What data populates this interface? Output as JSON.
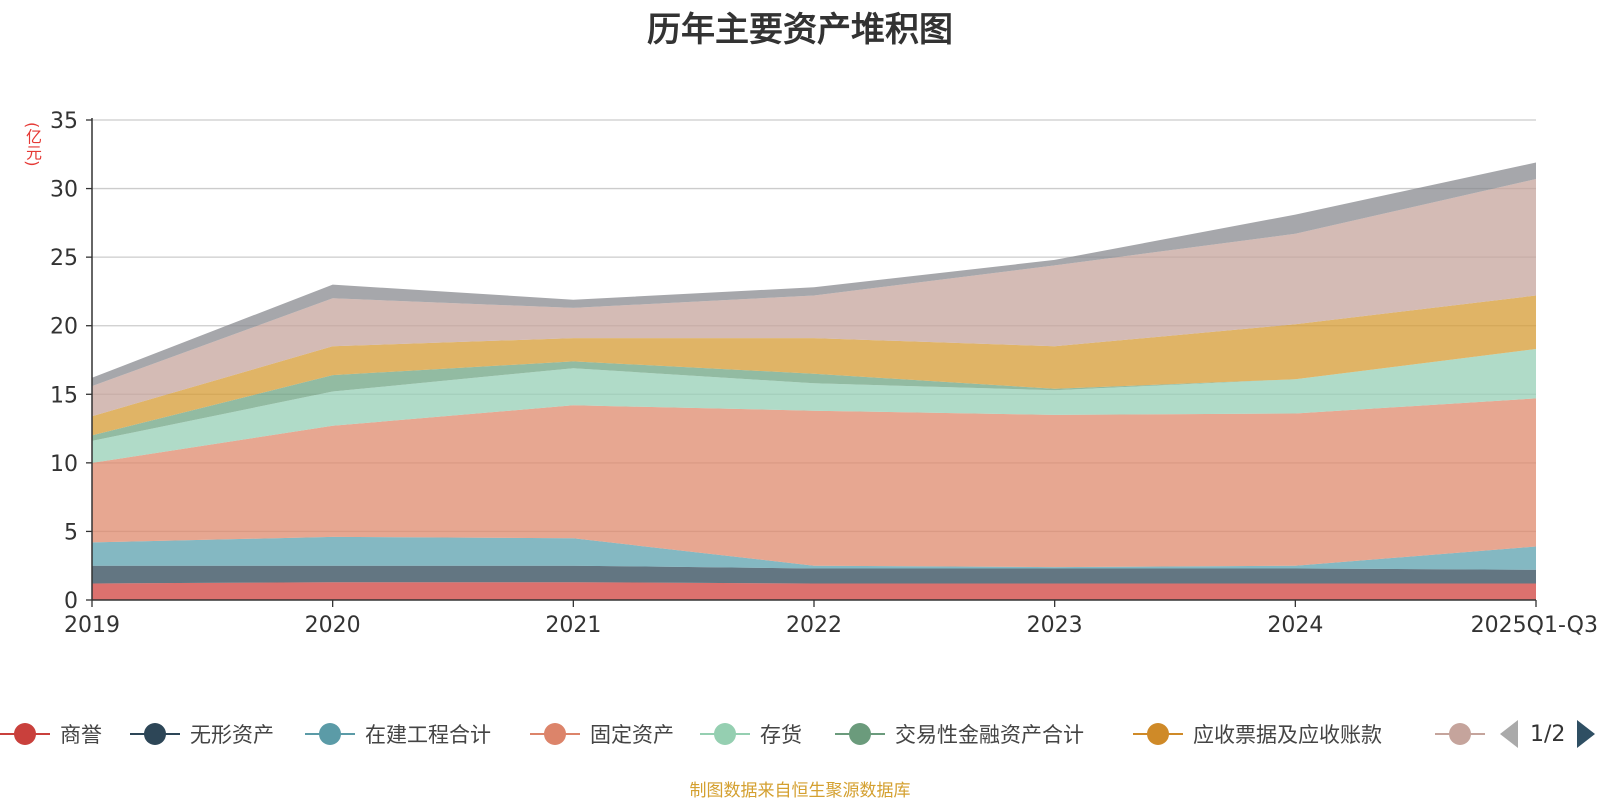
{
  "chart_data": {
    "type": "area",
    "stacked": true,
    "title": "历年主要资产堆积图",
    "ylabel": "(亿元)",
    "xlabel": "",
    "ylim": [
      0,
      35
    ],
    "yticks": [
      0,
      5,
      10,
      15,
      20,
      25,
      30,
      35
    ],
    "categories": [
      "2019",
      "2020",
      "2021",
      "2022",
      "2023",
      "2024",
      "2025Q1-Q3"
    ],
    "grid": true,
    "series": [
      {
        "name": "商誉",
        "color": "#d0413d",
        "values": [
          1.2,
          1.3,
          1.3,
          1.2,
          1.2,
          1.2,
          1.2
        ]
      },
      {
        "name": "无形资产",
        "color": "#2f4858",
        "values": [
          1.3,
          1.2,
          1.2,
          1.1,
          1.1,
          1.1,
          1.0
        ]
      },
      {
        "name": "在建工程合计",
        "color": "#5ba0ae",
        "values": [
          1.7,
          2.1,
          2.0,
          0.2,
          0.1,
          0.2,
          1.7
        ]
      },
      {
        "name": "固定资产",
        "color": "#df8a6c",
        "values": [
          5.8,
          8.1,
          9.7,
          11.3,
          11.1,
          11.1,
          10.8
        ]
      },
      {
        "name": "存货",
        "color": "#96cfb5",
        "values": [
          1.6,
          2.5,
          2.7,
          2.0,
          1.8,
          2.5,
          3.6
        ]
      },
      {
        "name": "交易性金融资产合计",
        "color": "#6ea483",
        "values": [
          0.4,
          1.2,
          0.5,
          0.7,
          0.1,
          0.0,
          0.0
        ]
      },
      {
        "name": "应收票据及应收账款",
        "color": "#d59b33",
        "values": [
          1.4,
          2.1,
          1.7,
          2.6,
          3.1,
          4.0,
          3.9
        ]
      },
      {
        "name": "",
        "color": "#c5a49c",
        "values": [
          2.2,
          3.5,
          2.2,
          3.1,
          5.9,
          6.6,
          8.5
        ]
      },
      {
        "name": "",
        "color": "#888a8f",
        "values": [
          0.6,
          1.0,
          0.6,
          0.6,
          0.4,
          1.4,
          1.2
        ]
      }
    ]
  },
  "legend": {
    "items": [
      {
        "label": "商誉",
        "color": "#c9403c"
      },
      {
        "label": "无形资产",
        "color": "#2d4657"
      },
      {
        "label": "在建工程合计",
        "color": "#5b9ba7"
      },
      {
        "label": "固定资产",
        "color": "#dc846a"
      },
      {
        "label": "存货",
        "color": "#95cfb1"
      },
      {
        "label": "交易性金融资产合计",
        "color": "#6b9b7c"
      },
      {
        "label": "应收票据及应收账款",
        "color": "#cf8a28"
      },
      {
        "label": "",
        "color": "#c5a49c"
      }
    ],
    "page_text": "1/2"
  },
  "source": "制图数据来自恒生聚源数据库"
}
